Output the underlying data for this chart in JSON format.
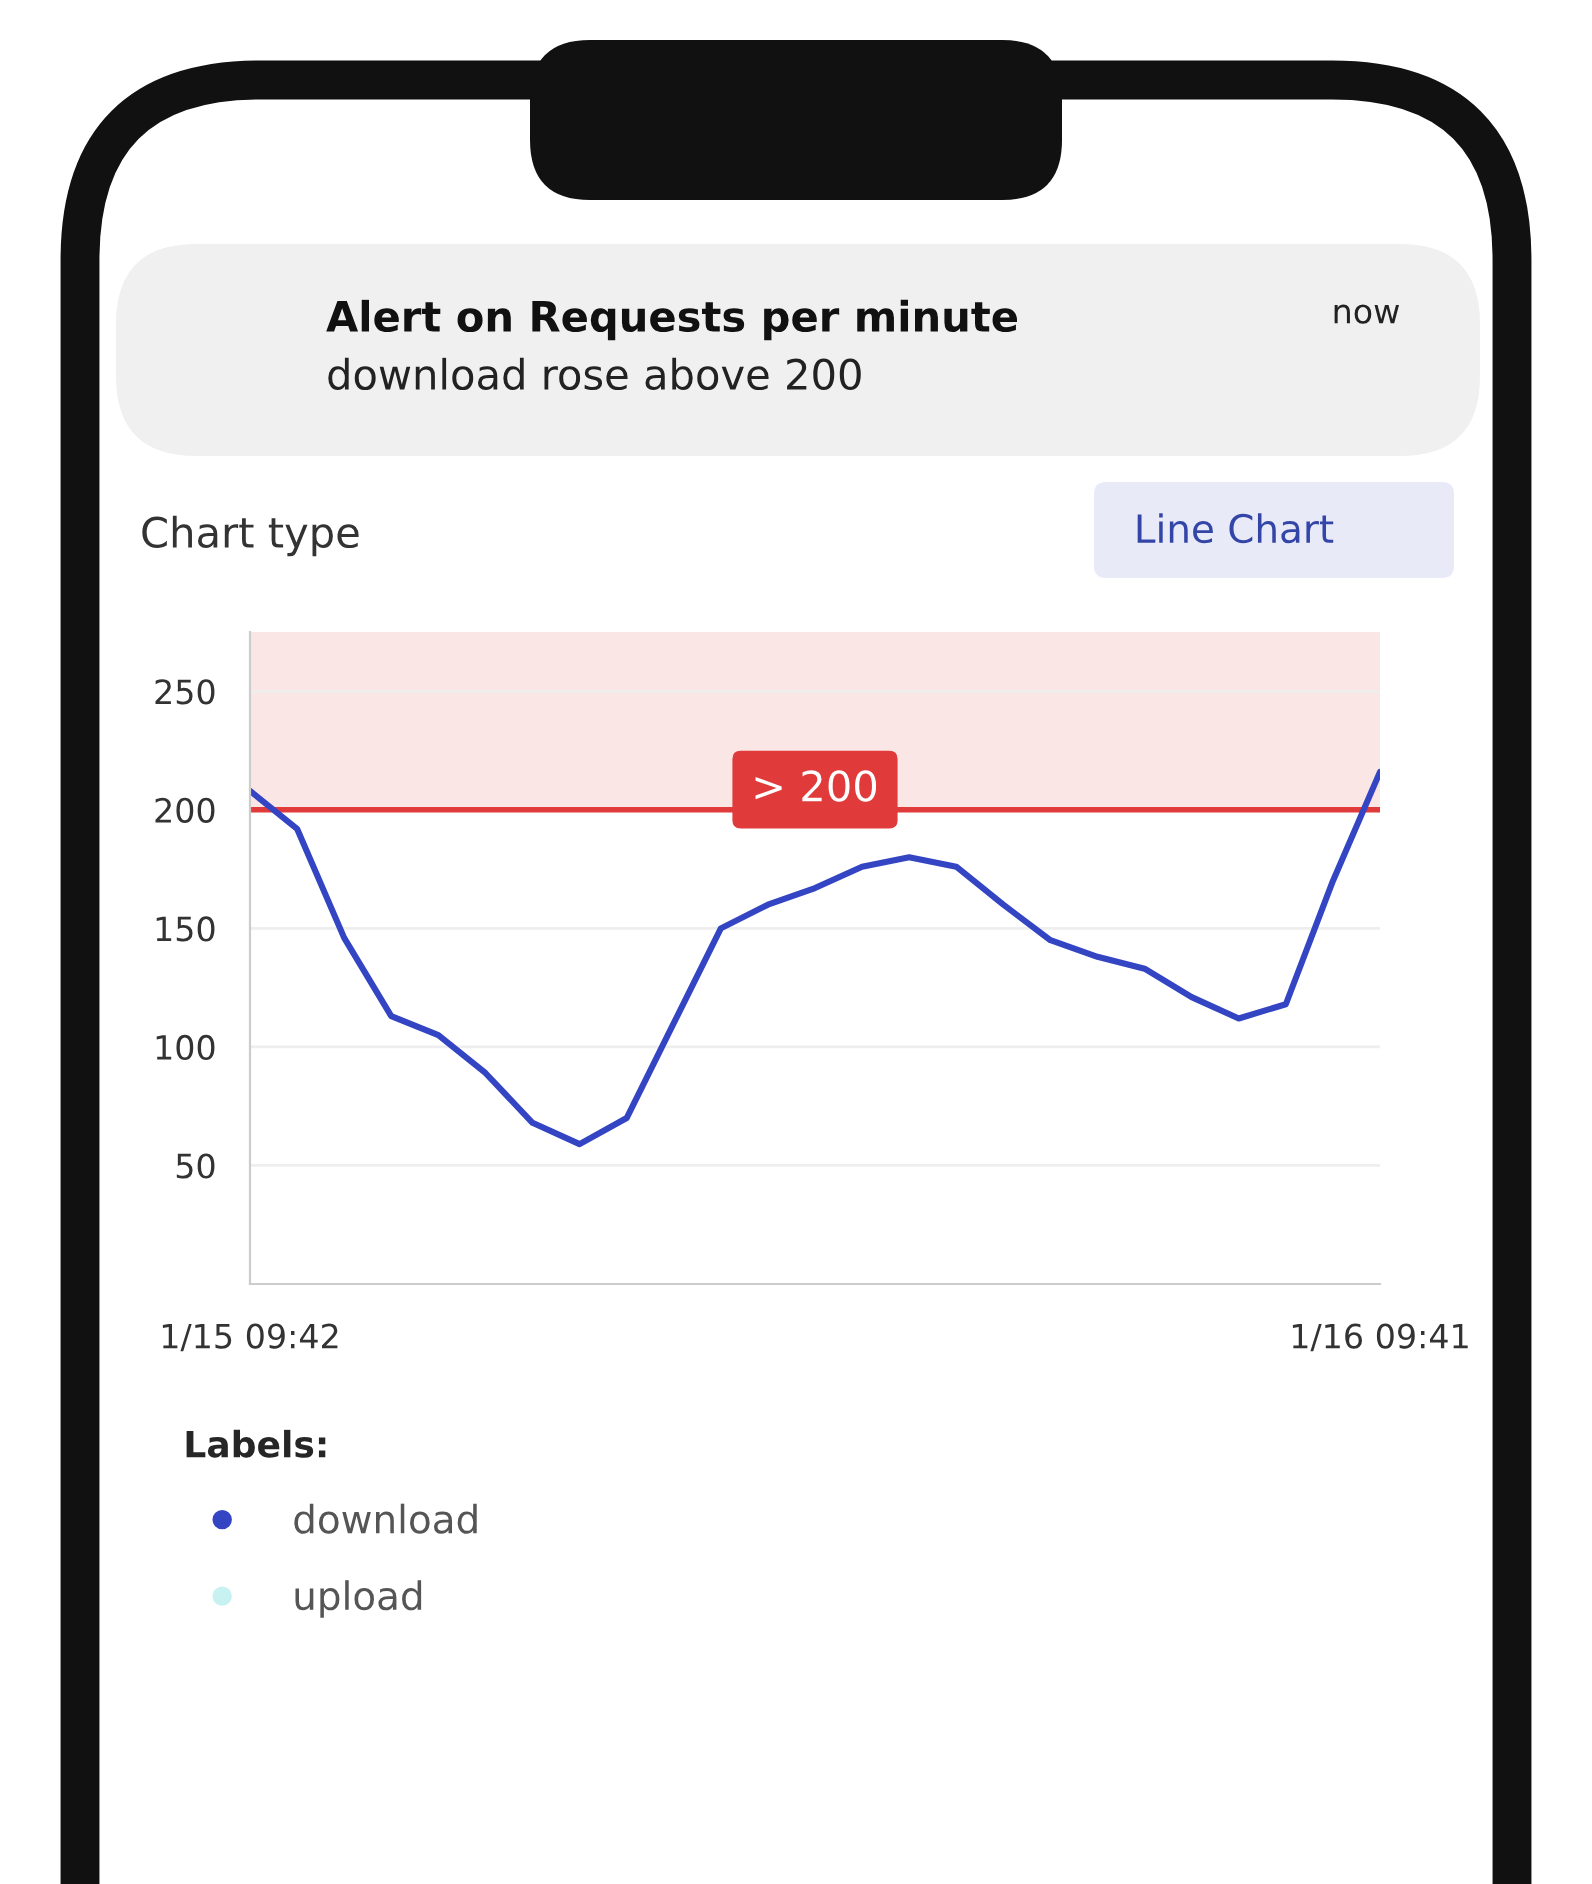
{
  "chart_data": {
    "type": "line",
    "title": "Alert on Requests per minute",
    "subtitle": "download rose above 200",
    "annotations": [
      "now",
      "Chart type",
      "Line Chart"
    ],
    "legend_title": "Labels:",
    "categories": [
      "1/15 09:42",
      null,
      null,
      null,
      null,
      null,
      null,
      null,
      null,
      null,
      null,
      null,
      null,
      null,
      null,
      null,
      null,
      null,
      null,
      null,
      null,
      null,
      null,
      null,
      "1/16 09:41"
    ],
    "series": [
      {
        "name": "download",
        "color": "#3445c4",
        "values": [
          208,
          192,
          146,
          113,
          105,
          89,
          68,
          59,
          70,
          110,
          150,
          160,
          167,
          176,
          180,
          176,
          160,
          145,
          138,
          133,
          121,
          112,
          118,
          170,
          216
        ]
      },
      {
        "name": "upload",
        "color": "#c8f2f2",
        "values": [
          null,
          null,
          null,
          null,
          null,
          null,
          null,
          null,
          null,
          null,
          null,
          null,
          null,
          null,
          null,
          null,
          null,
          null,
          null,
          null,
          null,
          null,
          null,
          null,
          null
        ]
      }
    ],
    "ylim": [
      0,
      275
    ],
    "yticks": [
      50,
      100,
      150,
      200,
      250
    ],
    "ref_lines": [
      {
        "axis": "y",
        "value": 200,
        "label": "> 200",
        "color": "#e03a3a"
      }
    ],
    "bands": [
      {
        "axis": "y",
        "from": 200,
        "to": 275,
        "color": "#fbe6e6"
      }
    ],
    "grid": "y",
    "legend": "bottom",
    "marker": "none",
    "line_style": "solid"
  }
}
